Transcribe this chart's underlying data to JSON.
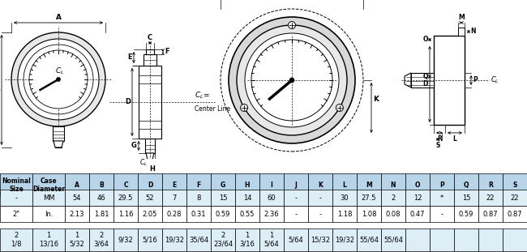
{
  "bg_color": "#ffffff",
  "table_header_bg": "#b8d4e8",
  "table_row1_bg": "#ddeef6",
  "table_row2_bg": "#ffffff",
  "table_row3_bg": "#ddeef6",
  "col_headers": [
    "Nominal\nSize",
    "Case\nDiameter",
    "A",
    "B",
    "C",
    "D",
    "E",
    "F",
    "G",
    "H",
    "I",
    "J",
    "K",
    "L",
    "M",
    "N",
    "O",
    "P",
    "Q",
    "R",
    "S"
  ],
  "row1": [
    "-",
    "MM",
    "54",
    "46",
    "29.5",
    "52",
    "7",
    "8",
    "15",
    "14",
    "60",
    "-",
    "-",
    "30",
    "27.5",
    "2",
    "12",
    "*",
    "15",
    "22",
    "22"
  ],
  "row2": [
    "2\"",
    "In.",
    "2.13",
    "1.81",
    "1.16",
    "2.05",
    "0.28",
    "0.31",
    "0.59",
    "0.55",
    "2.36",
    "-",
    "-",
    "1.18",
    "1.08",
    "0.08",
    "0.47",
    "-",
    "0.59",
    "0.87",
    "0.87"
  ],
  "row3": [
    "2\n1/8",
    "1\n13/16",
    "1\n5/32",
    "2\n3/64",
    "9/32",
    "5/16",
    "19/32",
    "35/64",
    "2\n23/64",
    "1\n3/16",
    "1\n5/64",
    "5/64",
    "15/32",
    "19/32",
    "55/64",
    "55/64",
    "",
    "",
    "",
    "",
    ""
  ]
}
